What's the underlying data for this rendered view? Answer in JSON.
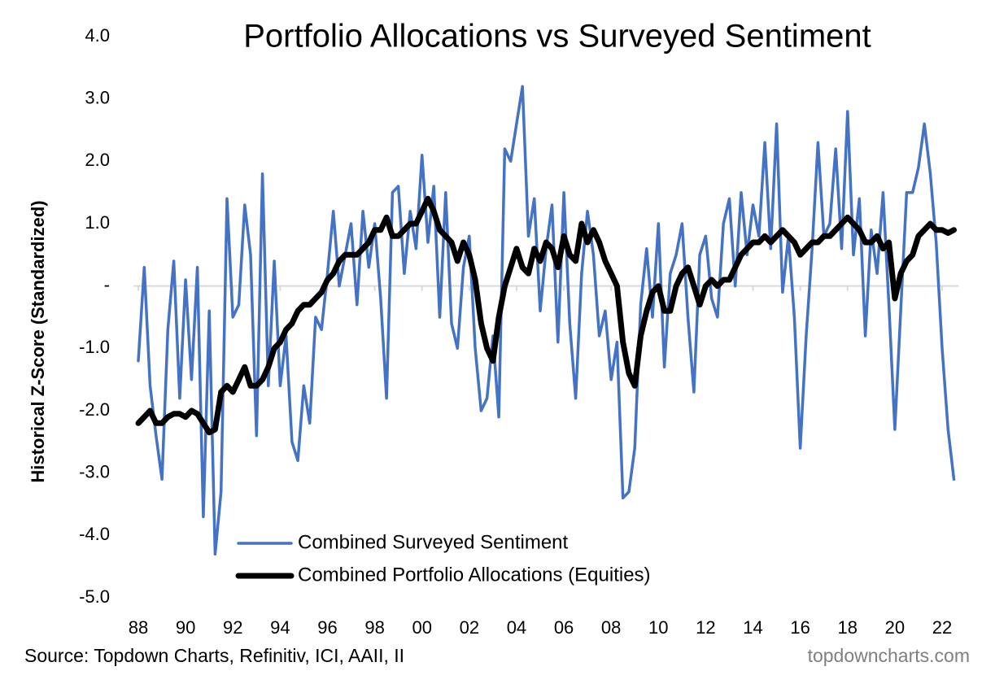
{
  "chart_data": {
    "type": "line",
    "title": "Portfolio Allocations vs Surveyed Sentiment",
    "y_label": "Historical Z-Score (Standardized)",
    "source": "Source: Topdown Charts, Refinitiv, ICI, AAII, II",
    "watermark": "topdowncharts.com",
    "x": [
      1988,
      1988.25,
      1988.5,
      1988.75,
      1989,
      1989.25,
      1989.5,
      1989.75,
      1990,
      1990.25,
      1990.5,
      1990.75,
      1991,
      1991.25,
      1991.5,
      1991.75,
      1992,
      1992.25,
      1992.5,
      1992.75,
      1993,
      1993.25,
      1993.5,
      1993.75,
      1994,
      1994.25,
      1994.5,
      1994.75,
      1995,
      1995.25,
      1995.5,
      1995.75,
      1996,
      1996.25,
      1996.5,
      1996.75,
      1997,
      1997.25,
      1997.5,
      1997.75,
      1998,
      1998.25,
      1998.5,
      1998.75,
      1999,
      1999.25,
      1999.5,
      1999.75,
      2000,
      2000.25,
      2000.5,
      2000.75,
      2001,
      2001.25,
      2001.5,
      2001.75,
      2002,
      2002.25,
      2002.5,
      2002.75,
      2003,
      2003.25,
      2003.5,
      2003.75,
      2004,
      2004.25,
      2004.5,
      2004.75,
      2005,
      2005.25,
      2005.5,
      2005.75,
      2006,
      2006.25,
      2006.5,
      2006.75,
      2007,
      2007.25,
      2007.5,
      2007.75,
      2008,
      2008.25,
      2008.5,
      2008.75,
      2009,
      2009.25,
      2009.5,
      2009.75,
      2010,
      2010.25,
      2010.5,
      2010.75,
      2011,
      2011.25,
      2011.5,
      2011.75,
      2012,
      2012.25,
      2012.5,
      2012.75,
      2013,
      2013.25,
      2013.5,
      2013.75,
      2014,
      2014.25,
      2014.5,
      2014.75,
      2015,
      2015.25,
      2015.5,
      2015.75,
      2016,
      2016.25,
      2016.5,
      2016.75,
      2017,
      2017.25,
      2017.5,
      2017.75,
      2018,
      2018.25,
      2018.5,
      2018.75,
      2019,
      2019.25,
      2019.5,
      2019.75,
      2020,
      2020.25,
      2020.5,
      2020.75,
      2021,
      2021.25,
      2021.5,
      2021.75,
      2022,
      2022.25,
      2022.5
    ],
    "series": [
      {
        "name": "Combined Surveyed Sentiment",
        "color": "#4472c4",
        "width": 3.5,
        "values": [
          -1.2,
          0.3,
          -1.6,
          -2.4,
          -3.1,
          -0.7,
          0.4,
          -1.8,
          0.1,
          -1.5,
          0.3,
          -3.7,
          -0.4,
          -4.3,
          -3.3,
          1.4,
          -0.5,
          -0.3,
          1.3,
          0.5,
          -2.4,
          1.8,
          -1.6,
          0.4,
          -1.6,
          -0.8,
          -2.5,
          -2.8,
          -1.6,
          -2.2,
          -0.5,
          -0.7,
          0.2,
          1.2,
          0.0,
          0.5,
          1.0,
          -0.3,
          1.2,
          0.3,
          1.0,
          -0.2,
          -1.8,
          1.5,
          1.6,
          0.2,
          1.2,
          0.6,
          2.1,
          0.7,
          1.6,
          -0.5,
          1.5,
          -0.6,
          -1.0,
          0.3,
          0.8,
          -1.0,
          -2.0,
          -1.8,
          -0.8,
          -2.1,
          2.2,
          2.0,
          2.6,
          3.2,
          0.8,
          1.4,
          -0.4,
          0.6,
          1.3,
          -0.9,
          1.5,
          -0.6,
          -1.8,
          0.2,
          1.2,
          0.5,
          -0.8,
          -0.4,
          -1.5,
          -0.9,
          -3.4,
          -3.3,
          -2.6,
          -0.3,
          0.6,
          -0.5,
          1.0,
          -1.3,
          0.2,
          0.5,
          1.0,
          -0.5,
          -1.7,
          0.5,
          0.8,
          -0.2,
          -0.5,
          1.0,
          1.4,
          0.0,
          1.5,
          0.5,
          1.3,
          0.8,
          2.3,
          0.6,
          2.6,
          -0.1,
          0.8,
          -0.5,
          -2.6,
          -0.8,
          0.6,
          2.3,
          0.8,
          1.0,
          2.2,
          0.6,
          2.8,
          0.5,
          1.4,
          -0.8,
          0.9,
          0.2,
          1.5,
          -0.3,
          -2.3,
          -0.4,
          1.5,
          1.5,
          1.9,
          2.6,
          1.8,
          0.7,
          -1.0,
          -2.3,
          -3.1
        ]
      },
      {
        "name": "Combined Portfolio Allocations (Equities)",
        "color": "#000000",
        "width": 7,
        "values": [
          -2.2,
          -2.1,
          -2.0,
          -2.2,
          -2.2,
          -2.1,
          -2.05,
          -2.05,
          -2.1,
          -2.0,
          -2.05,
          -2.2,
          -2.35,
          -2.3,
          -1.7,
          -1.6,
          -1.7,
          -1.5,
          -1.3,
          -1.6,
          -1.6,
          -1.5,
          -1.3,
          -1.0,
          -0.9,
          -0.7,
          -0.6,
          -0.4,
          -0.3,
          -0.3,
          -0.2,
          -0.1,
          0.1,
          0.2,
          0.4,
          0.5,
          0.5,
          0.5,
          0.6,
          0.7,
          0.9,
          0.9,
          1.1,
          0.8,
          0.8,
          0.9,
          1.0,
          1.0,
          1.2,
          1.4,
          1.2,
          0.9,
          0.8,
          0.7,
          0.4,
          0.7,
          0.5,
          0.1,
          -0.6,
          -1.0,
          -1.2,
          -0.5,
          0.0,
          0.3,
          0.6,
          0.3,
          0.2,
          0.6,
          0.4,
          0.7,
          0.6,
          0.3,
          0.8,
          0.5,
          0.4,
          1.0,
          0.7,
          0.9,
          0.7,
          0.4,
          0.2,
          0.0,
          -0.9,
          -1.4,
          -1.6,
          -0.8,
          -0.4,
          -0.1,
          0.0,
          -0.4,
          -0.4,
          0.0,
          0.2,
          0.3,
          0.0,
          -0.3,
          0.0,
          0.1,
          0.0,
          0.1,
          0.1,
          0.3,
          0.5,
          0.6,
          0.7,
          0.7,
          0.8,
          0.7,
          0.8,
          0.9,
          0.8,
          0.7,
          0.5,
          0.6,
          0.7,
          0.7,
          0.8,
          0.8,
          0.9,
          1.0,
          1.1,
          1.0,
          0.9,
          0.7,
          0.7,
          0.8,
          0.6,
          0.7,
          -0.2,
          0.2,
          0.4,
          0.5,
          0.8,
          0.9,
          1.0,
          0.9,
          0.9,
          0.85,
          0.9
        ]
      }
    ],
    "xlim": [
      1987.8,
      2022.7
    ],
    "xticks": [
      {
        "value": 1988,
        "label": "88"
      },
      {
        "value": 1990,
        "label": "90"
      },
      {
        "value": 1992,
        "label": "92"
      },
      {
        "value": 1994,
        "label": "94"
      },
      {
        "value": 1996,
        "label": "96"
      },
      {
        "value": 1998,
        "label": "98"
      },
      {
        "value": 2000,
        "label": "00"
      },
      {
        "value": 2002,
        "label": "02"
      },
      {
        "value": 2004,
        "label": "04"
      },
      {
        "value": 2006,
        "label": "06"
      },
      {
        "value": 2008,
        "label": "08"
      },
      {
        "value": 2010,
        "label": "10"
      },
      {
        "value": 2012,
        "label": "12"
      },
      {
        "value": 2014,
        "label": "14"
      },
      {
        "value": 2016,
        "label": "16"
      },
      {
        "value": 2018,
        "label": "18"
      },
      {
        "value": 2020,
        "label": "20"
      },
      {
        "value": 2022,
        "label": "22"
      }
    ],
    "ylim": [
      -5,
      4
    ],
    "yticks": [
      {
        "value": -5,
        "label": "-5.0"
      },
      {
        "value": -4,
        "label": "-4.0"
      },
      {
        "value": -3,
        "label": "-3.0"
      },
      {
        "value": -2,
        "label": "-2.0"
      },
      {
        "value": -1,
        "label": "-1.0"
      },
      {
        "value": 0,
        "label": "-"
      },
      {
        "value": 1,
        "label": "1.0"
      },
      {
        "value": 2,
        "label": "2.0"
      },
      {
        "value": 3,
        "label": "3.0"
      },
      {
        "value": 4,
        "label": "4.0"
      }
    ],
    "legend": "bottom-left"
  }
}
